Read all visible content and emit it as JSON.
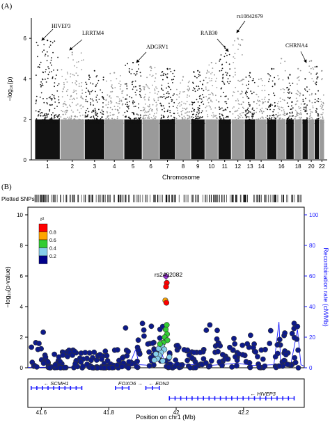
{
  "colors": {
    "chr_dark": "#111111",
    "chr_light": "#9a9a9a",
    "lz_axis": "#1a1aff",
    "lz_point": "#0d1a8a",
    "lz_edge": "#333333",
    "lead": "#9b30d9",
    "r2_scale": [
      "#ff0000",
      "#ffa500",
      "#33cc33",
      "#87ceeb",
      "#00008b"
    ]
  },
  "panel_a": {
    "label": "(A)",
    "xlabel": "Chromosome",
    "ylabel": "−log₁₀(p)",
    "annotations": [
      {
        "text": "HIVEP3"
      },
      {
        "text": "LRRTM4"
      },
      {
        "text": "ADGRV1"
      },
      {
        "text": "RAB30"
      },
      {
        "text": "rs10842679"
      },
      {
        "text": "CHRNA4"
      }
    ]
  },
  "panel_b": {
    "label": "(B)",
    "snp_track_label": "Plotted SNPs",
    "ylabel_left": "−log₁₀(p-value)",
    "ylabel_right": "Recombination rate (cM/Mb)",
    "xlabel": "Position on chr1 (Mb)",
    "legend_title": "r²",
    "legend_ticks": [
      "0.8",
      "0.6",
      "0.4",
      "0.2"
    ],
    "lead_snp": "rs2492082",
    "genes": [
      {
        "name": "SCMH1"
      },
      {
        "name": "FOXO6"
      },
      {
        "name": "EDN2"
      },
      {
        "name": "HIVEP3"
      }
    ]
  },
  "chart_data": [
    {
      "type": "scatter",
      "subtype": "manhattan",
      "xlabel": "Chromosome",
      "ylabel": "−log₁₀(p)",
      "ylim": [
        0,
        7
      ],
      "yticks": [
        "0",
        "2",
        "4",
        "6"
      ],
      "categories": [
        "1",
        "2",
        "3",
        "4",
        "5",
        "6",
        "7",
        "8",
        "9",
        "10",
        "11",
        "12",
        "13",
        "14",
        "16",
        "18",
        "20",
        "22"
      ],
      "chromosomes": [
        {
          "chr": "1",
          "max": 5.9
        },
        {
          "chr": "2",
          "max": 5.3
        },
        {
          "chr": "3",
          "max": 4.4
        },
        {
          "chr": "4",
          "max": 4.3
        },
        {
          "chr": "5",
          "max": 4.8
        },
        {
          "chr": "6",
          "max": 4.6
        },
        {
          "chr": "7",
          "max": 4.5
        },
        {
          "chr": "8",
          "max": 4.1
        },
        {
          "chr": "9",
          "max": 4.4
        },
        {
          "chr": "10",
          "max": 4.8
        },
        {
          "chr": "11",
          "max": 5.6
        },
        {
          "chr": "12",
          "max": 6.0
        },
        {
          "chr": "13",
          "max": 4.3
        },
        {
          "chr": "14",
          "max": 4.0
        },
        {
          "chr": "15",
          "max": 4.5
        },
        {
          "chr": "16",
          "max": 5.0
        },
        {
          "chr": "17",
          "max": 4.2
        },
        {
          "chr": "18",
          "max": 4.5
        },
        {
          "chr": "19",
          "max": 4.0
        },
        {
          "chr": "20",
          "max": 4.9
        },
        {
          "chr": "21",
          "max": 4.6
        },
        {
          "chr": "22",
          "max": 4.4
        }
      ],
      "annotations": [
        {
          "text": "HIVEP3",
          "chr": "1",
          "y": 5.9
        },
        {
          "text": "LRRTM4",
          "chr": "2",
          "y": 5.3
        },
        {
          "text": "ADGRV1",
          "chr": "5",
          "y": 4.8
        },
        {
          "text": "RAB30",
          "chr": "11",
          "y": 5.6
        },
        {
          "text": "rs10842679",
          "chr": "12",
          "y": 6.0
        },
        {
          "text": "CHRNA4",
          "chr": "20",
          "y": 4.9
        }
      ]
    },
    {
      "type": "scatter",
      "subtype": "locuszoom",
      "xlabel": "Position on chr1 (Mb)",
      "ylabel": "−log₁₀(p-value)",
      "y2label": "Recombination rate (cM/Mb)",
      "xlim": [
        41.56,
        42.38
      ],
      "ylim": [
        0,
        10.5
      ],
      "y2lim": [
        0,
        105
      ],
      "xticks": [
        "41.6",
        "41.8",
        "42",
        "42.2"
      ],
      "yticks": [
        "0",
        "2",
        "4",
        "6",
        "8",
        "10"
      ],
      "y2ticks": [
        "0",
        "20",
        "40",
        "60",
        "80",
        "100"
      ],
      "lead_snp": {
        "name": "rs2492082",
        "x": 41.97,
        "y": 5.98
      },
      "ld_points": [
        {
          "x": 41.972,
          "y": 5.55,
          "r2": "0.9"
        },
        {
          "x": 41.97,
          "y": 5.3,
          "r2": "0.9"
        },
        {
          "x": 41.968,
          "y": 4.4,
          "r2": "0.7"
        },
        {
          "x": 41.971,
          "y": 4.25,
          "r2": "0.9"
        },
        {
          "x": 41.972,
          "y": 2.8,
          "r2": "0.5"
        },
        {
          "x": 41.969,
          "y": 2.5,
          "r2": "0.5"
        },
        {
          "x": 41.973,
          "y": 2.2,
          "r2": "0.5"
        },
        {
          "x": 41.966,
          "y": 2.0,
          "r2": "0.5"
        },
        {
          "x": 41.974,
          "y": 1.8,
          "r2": "0.5"
        },
        {
          "x": 41.962,
          "y": 1.65,
          "r2": "0.5"
        },
        {
          "x": 41.958,
          "y": 1.4,
          "r2": "0.3"
        },
        {
          "x": 41.965,
          "y": 1.2,
          "r2": "0.3"
        },
        {
          "x": 41.955,
          "y": 1.0,
          "r2": "0.3"
        },
        {
          "x": 41.95,
          "y": 0.8,
          "r2": "0.3"
        },
        {
          "x": 41.945,
          "y": 0.6,
          "r2": "0.3"
        },
        {
          "x": 41.948,
          "y": 1.25,
          "r2": "0.3"
        },
        {
          "x": 41.952,
          "y": 1.55,
          "r2": "0.5"
        },
        {
          "x": 41.96,
          "y": 0.45,
          "r2": "0.3"
        },
        {
          "x": 41.94,
          "y": 0.9,
          "r2": "0.3"
        },
        {
          "x": 41.935,
          "y": 0.5,
          "r2": "0.3"
        },
        {
          "x": 41.98,
          "y": 0.7,
          "r2": "0.3"
        }
      ],
      "recombination_profile": [
        [
          41.56,
          0.2
        ],
        [
          41.7,
          0.5
        ],
        [
          41.8,
          0.8
        ],
        [
          41.86,
          1.2
        ],
        [
          41.88,
          12
        ],
        [
          41.89,
          2
        ],
        [
          41.93,
          1.5
        ],
        [
          41.95,
          15
        ],
        [
          41.965,
          4
        ],
        [
          42.0,
          2.5
        ],
        [
          42.05,
          2
        ],
        [
          42.1,
          1.5
        ],
        [
          42.18,
          3
        ],
        [
          42.23,
          1.5
        ],
        [
          42.29,
          2
        ],
        [
          42.305,
          30
        ],
        [
          42.31,
          3
        ],
        [
          42.34,
          2
        ],
        [
          42.36,
          25
        ],
        [
          42.37,
          2
        ],
        [
          42.38,
          1
        ]
      ],
      "gene_track": [
        {
          "name": "SCMH1",
          "start": 41.57,
          "end": 41.72,
          "strand": "-"
        },
        {
          "name": "FOXO6",
          "start": 41.82,
          "end": 41.86,
          "strand": "+"
        },
        {
          "name": "EDN2",
          "start": 41.91,
          "end": 41.95,
          "strand": "-"
        },
        {
          "name": "HIVEP3",
          "start": 41.98,
          "end": 42.35,
          "strand": "-"
        }
      ]
    }
  ]
}
